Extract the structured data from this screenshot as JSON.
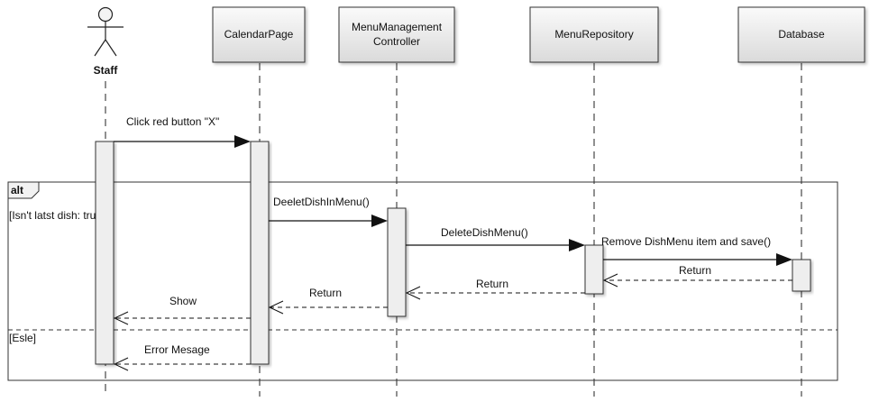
{
  "actor": {
    "name": "Staff"
  },
  "participants": {
    "calendar": {
      "name": "CalendarPage"
    },
    "controller": {
      "line1": "MenuManagement",
      "line2": "Controller"
    },
    "repository": {
      "name": "MenuRepository"
    },
    "database": {
      "name": "Database"
    }
  },
  "fragment": {
    "operator": "alt",
    "guard_true": "[Isn't latst dish: true]",
    "guard_else": "[Esle]"
  },
  "messages": {
    "click": "Click red button \"X\"",
    "delete_dish_in_menu": "DeeletDishInMenu()",
    "delete_dish_menu": "DeleteDishMenu()",
    "remove_and_save": "Remove DishMenu item and save()",
    "return_db": "Return",
    "return_repo": "Return",
    "return_controller": "Return",
    "show": "Show",
    "error": "Error Mesage"
  },
  "colors": {
    "line": "#222222",
    "box_fill_top": "#f7f7f7",
    "box_fill_bottom": "#dcdcdc",
    "activation_fill": "#eeeeee"
  }
}
